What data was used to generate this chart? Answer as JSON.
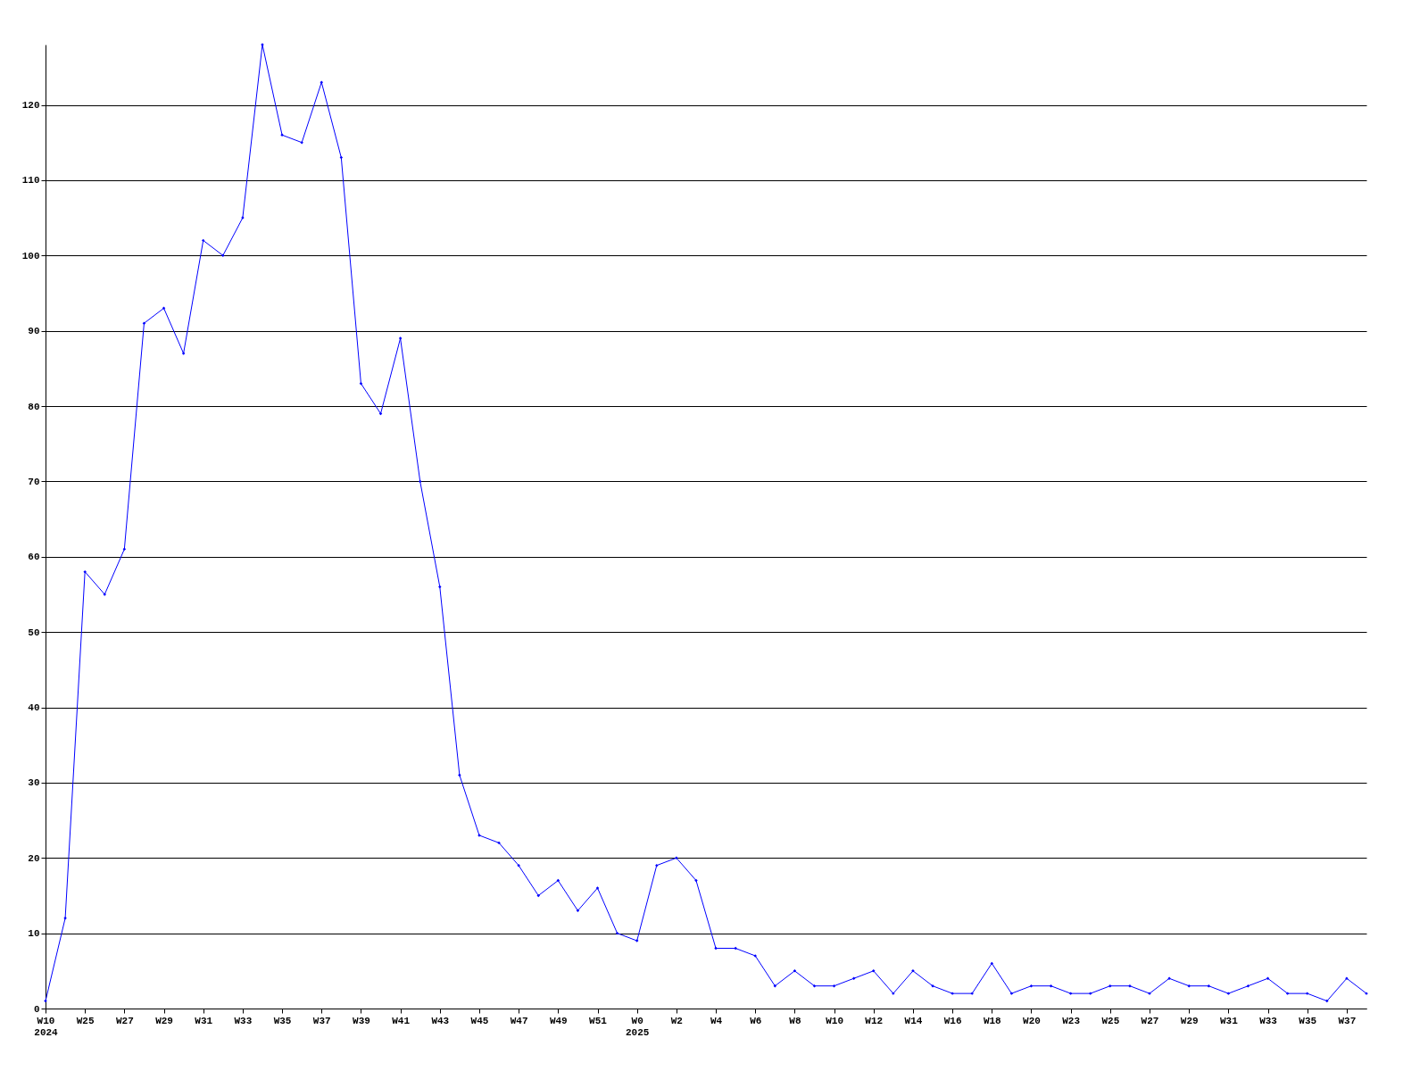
{
  "chart_data": {
    "type": "line",
    "categories": [
      "W10\n2024",
      null,
      "W25",
      null,
      "W27",
      null,
      "W29",
      null,
      "W31",
      null,
      "W33",
      null,
      "W35",
      null,
      "W37",
      null,
      "W39",
      null,
      "W41",
      null,
      "W43",
      null,
      "W45",
      null,
      "W47",
      null,
      "W49",
      null,
      "W51",
      null,
      "W0\n2025",
      null,
      "W2",
      null,
      "W4",
      null,
      "W6",
      null,
      "W8",
      null,
      "W10",
      null,
      "W12",
      null,
      "W14",
      null,
      "W16",
      null,
      "W18",
      null,
      "W20",
      null,
      "W23",
      null,
      "W25",
      null,
      "W27",
      null,
      "W29",
      null,
      "W31",
      null,
      "W33",
      null,
      "W35",
      null,
      "W37",
      null
    ],
    "series": [
      {
        "color": "#0000ff",
        "values": [
          1,
          12,
          58,
          55,
          61,
          91,
          93,
          87,
          102,
          100,
          105,
          128,
          116,
          115,
          123,
          113,
          83,
          79,
          89,
          70,
          56,
          31,
          23,
          22,
          19,
          15,
          17,
          13,
          16,
          10,
          9,
          19,
          20,
          17,
          8,
          8,
          7,
          3,
          5,
          3,
          3,
          4,
          5,
          2,
          5,
          3,
          2,
          2,
          6,
          2,
          3,
          3,
          2,
          2,
          3,
          3,
          2,
          4,
          3,
          3,
          2,
          3,
          4,
          2,
          2,
          1,
          4,
          2
        ]
      }
    ],
    "ylim": [
      0,
      128
    ],
    "yticks": [
      0,
      10,
      20,
      30,
      40,
      50,
      60,
      70,
      80,
      90,
      100,
      110,
      120
    ],
    "grid": "y",
    "marker": "diamond",
    "line_style": "solid"
  }
}
